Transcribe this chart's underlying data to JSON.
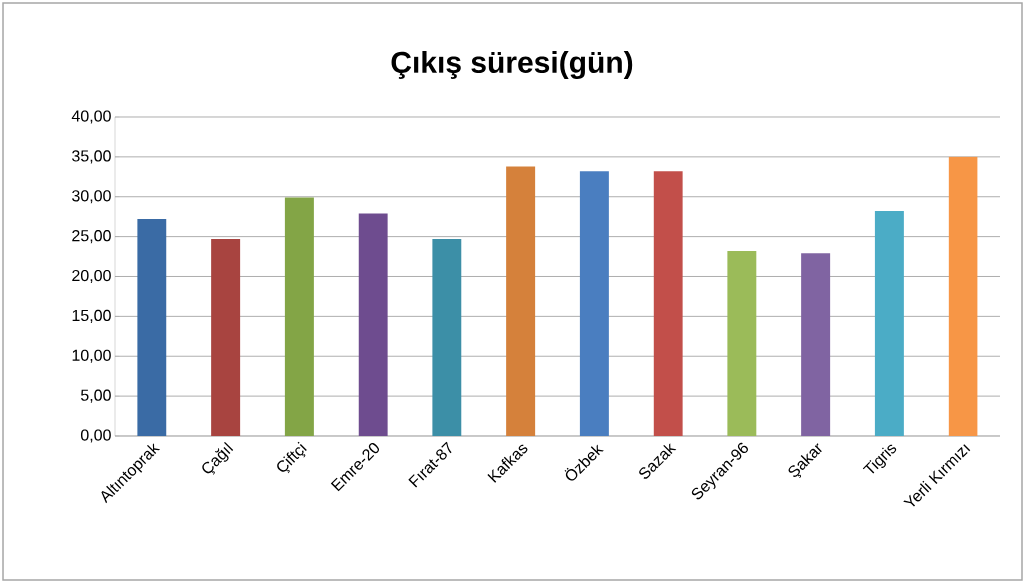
{
  "chart_data": {
    "type": "bar",
    "title": "Çıkış süresi(gün)",
    "categories": [
      "Altıntoprak",
      "Çağıl",
      "Çiftçi",
      "Emre-20",
      "Fırat-87",
      "Kafkas",
      "Özbek",
      "Sazak",
      "Seyran-96",
      "Şakar",
      "Tigris",
      "Yerli Kırmızı"
    ],
    "values": [
      27.2,
      24.7,
      29.9,
      27.9,
      24.7,
      33.8,
      33.2,
      33.2,
      23.2,
      22.9,
      28.2,
      35.0
    ],
    "colors": [
      "#3a6ba5",
      "#a84440",
      "#83a546",
      "#6e4c8f",
      "#3c8fa7",
      "#d5813b",
      "#4a7ec0",
      "#c24f4a",
      "#9bbb59",
      "#8064a2",
      "#4bacc6",
      "#f79646"
    ],
    "ylim": [
      0,
      40
    ],
    "yticks": [
      {
        "value": 0,
        "label": "0,00"
      },
      {
        "value": 5,
        "label": "5,00"
      },
      {
        "value": 10,
        "label": "10,00"
      },
      {
        "value": 15,
        "label": "15,00"
      },
      {
        "value": 20,
        "label": "20,00"
      },
      {
        "value": 25,
        "label": "25,00"
      },
      {
        "value": 30,
        "label": "30,00"
      },
      {
        "value": 35,
        "label": "35,00"
      },
      {
        "value": 40,
        "label": "40,00"
      }
    ],
    "grid": "y"
  }
}
